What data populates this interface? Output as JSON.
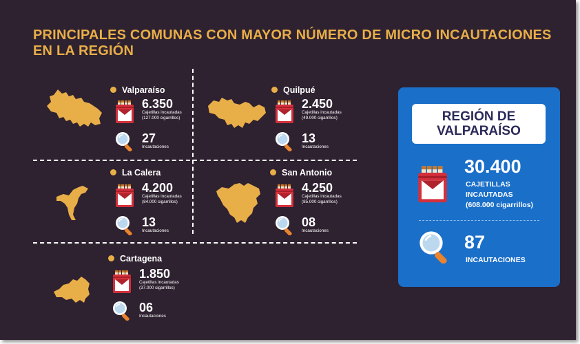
{
  "title": {
    "line1": "PRINCIPALES COMUNAS CON MAYOR NÚMERO DE MICRO INCAUTACIONES",
    "line2": "EN LA REGIÓN"
  },
  "comunas": [
    {
      "name": "Valparaíso",
      "cajetillas": "6.350",
      "cajetillas_label": "Cajetillas incautadas",
      "cigarrillos": "(127.000 cigarrillos)",
      "incautaciones": "27",
      "incautaciones_label": "Incautaciones"
    },
    {
      "name": "Quilpué",
      "cajetillas": "2.450",
      "cajetillas_label": "Cajetillas incautadas",
      "cigarrillos": "(49.000 cigarrillos)",
      "incautaciones": "13",
      "incautaciones_label": "Incautaciones"
    },
    {
      "name": "La Calera",
      "cajetillas": "4.200",
      "cajetillas_label": "Cajetillas incautadas",
      "cigarrillos": "(84.000 cigarrillos)",
      "incautaciones": "13",
      "incautaciones_label": "Incautaciones"
    },
    {
      "name": "San Antonio",
      "cajetillas": "4.250",
      "cajetillas_label": "Cajetillas incautadas",
      "cigarrillos": "(85.000 cigarrillos)",
      "incautaciones": "08",
      "incautaciones_label": "Incautaciones"
    },
    {
      "name": "Cartagena",
      "cajetillas": "1.850",
      "cajetillas_label": "Cajetillas incautadas",
      "cigarrillos": "(37.000 cigarrillos)",
      "incautaciones": "06",
      "incautaciones_label": "Incautaciones"
    }
  ],
  "region": {
    "line1": "REGIÓN DE",
    "line2": "VALPARAÍSO",
    "cajetillas": "30.400",
    "cajetillas_line1": "CAJETILLAS",
    "cajetillas_line2": "INCAUTADAS",
    "cigarrillos": "(608.000 cigarrillos)",
    "incautaciones": "87",
    "incautaciones_label": "INCAUTACIONES"
  },
  "colors": {
    "background": "#2e2130",
    "accent": "#e8ae48",
    "panel": "#1a6fc9",
    "pack_red": "#d3303c"
  },
  "icons": [
    "cigarette-pack-icon",
    "magnifier-icon",
    "dot-icon"
  ]
}
